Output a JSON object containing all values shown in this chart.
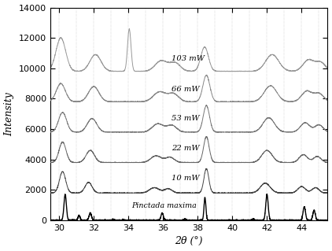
{
  "xlabel": "2θ (°)",
  "ylabel": "Intensity",
  "xlim": [
    29.5,
    45.5
  ],
  "ylim": [
    0,
    14000
  ],
  "yticks": [
    0,
    2000,
    4000,
    6000,
    8000,
    10000,
    12000,
    14000
  ],
  "xticks": [
    30,
    32,
    34,
    36,
    38,
    40,
    42,
    44
  ],
  "grid_x": [
    30,
    31,
    32,
    33,
    34,
    35,
    36,
    37,
    38,
    39,
    40,
    41,
    42,
    43,
    44,
    45
  ],
  "offsets": [
    0,
    1800,
    3800,
    5800,
    7800,
    9800
  ],
  "spectra_colors": [
    "#000000",
    "#444444",
    "#666666",
    "#777777",
    "#888888",
    "#999999"
  ],
  "spectra_linewidths": [
    1.0,
    0.7,
    0.7,
    0.7,
    0.7,
    0.7
  ],
  "background_color": "#ffffff",
  "figsize": [
    4.22,
    3.19
  ],
  "dpi": 100
}
